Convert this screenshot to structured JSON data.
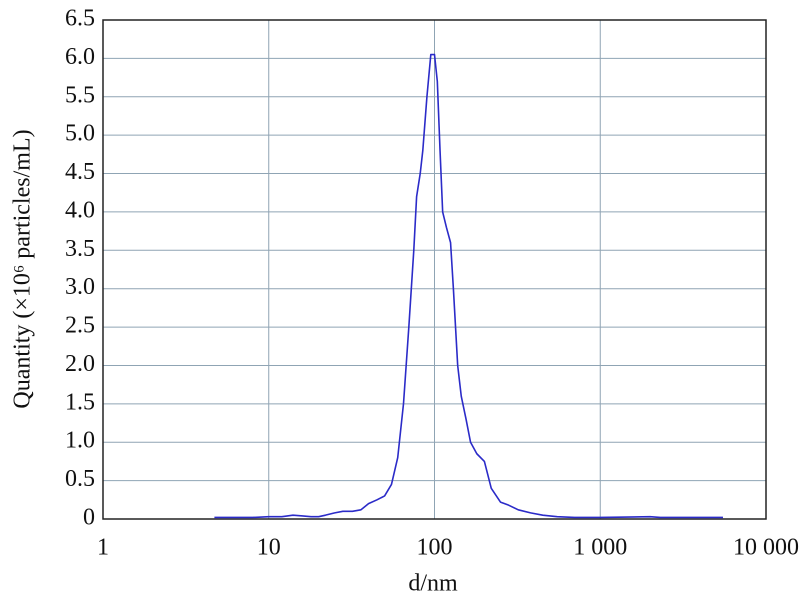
{
  "chart_data": {
    "type": "line",
    "x_label": "d/nm",
    "y_label": "Quantity (×10⁶ particles/mL)",
    "x_scale": "log",
    "grid": true,
    "color": "#2b2bc8",
    "xlim": [
      1,
      10000
    ],
    "xticks": [
      1,
      10,
      100,
      {
        "value": 1000,
        "label": "1 000"
      },
      {
        "value": 10000,
        "label": "10 000"
      }
    ],
    "ylim": [
      0,
      6.5
    ],
    "yticks": [
      0,
      0.5,
      {
        "value": 1,
        "label": "1.0"
      },
      1.5,
      {
        "value": 2,
        "label": "2.0"
      },
      2.5,
      {
        "value": 3,
        "label": "3.0"
      },
      3.5,
      {
        "value": 4,
        "label": "4.0"
      },
      4.5,
      {
        "value": 5,
        "label": "5.0"
      },
      5.5,
      {
        "value": 6,
        "label": "6.0"
      },
      6.5
    ],
    "x": [
      4.7,
      8,
      10,
      12,
      14,
      16,
      18,
      20,
      22,
      25,
      28,
      32,
      36,
      40,
      45,
      50,
      55,
      60,
      65,
      70,
      75,
      78,
      82,
      85,
      90,
      95,
      100,
      104,
      108,
      112,
      118,
      125,
      130,
      138,
      145,
      155,
      165,
      180,
      200,
      220,
      250,
      280,
      320,
      380,
      450,
      550,
      700,
      1000,
      2000,
      2300,
      5500
    ],
    "values": [
      0.02,
      0.02,
      0.03,
      0.03,
      0.05,
      0.04,
      0.03,
      0.03,
      0.05,
      0.08,
      0.1,
      0.1,
      0.12,
      0.2,
      0.25,
      0.3,
      0.45,
      0.8,
      1.5,
      2.5,
      3.5,
      4.2,
      4.5,
      4.8,
      5.5,
      6.05,
      6.05,
      5.7,
      4.8,
      4.0,
      3.8,
      3.6,
      3.0,
      2.0,
      1.6,
      1.3,
      1.0,
      0.85,
      0.75,
      0.4,
      0.22,
      0.18,
      0.12,
      0.08,
      0.05,
      0.03,
      0.02,
      0.02,
      0.03,
      0.02,
      0.02
    ]
  }
}
